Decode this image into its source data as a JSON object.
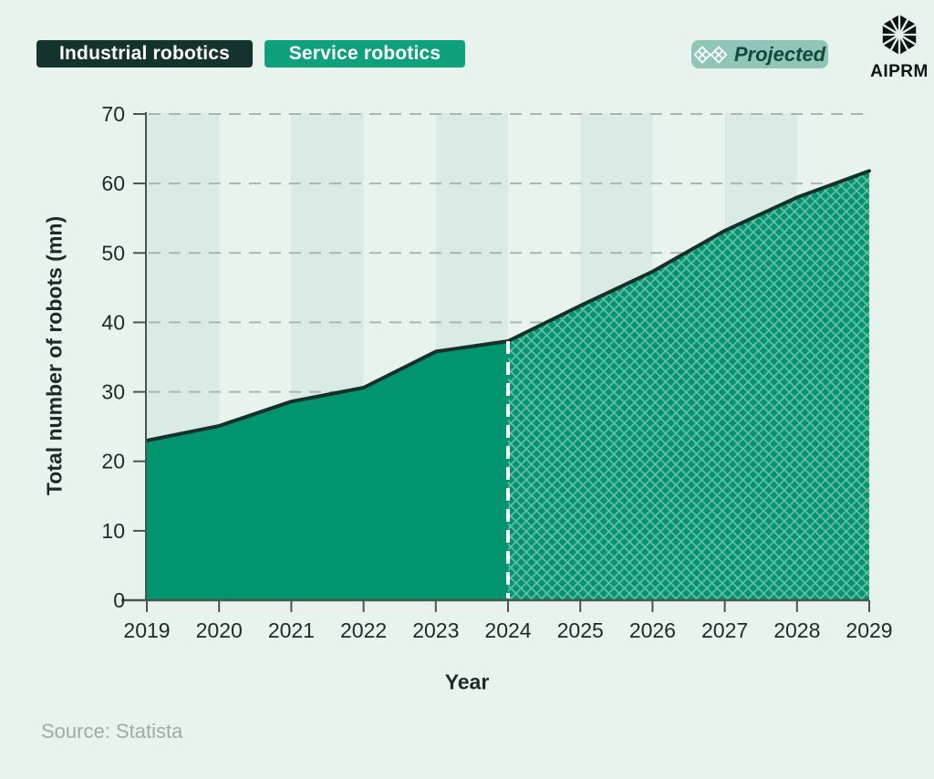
{
  "legend": {
    "industrial": "Industrial robotics",
    "service": "Service robotics",
    "projected": "Projected"
  },
  "brand": {
    "name": "AIPRM"
  },
  "source": "Source: Statista",
  "chart_data": {
    "type": "area",
    "x": [
      2019,
      2020,
      2021,
      2022,
      2023,
      2024,
      2025,
      2026,
      2027,
      2028,
      2029
    ],
    "series": [
      {
        "name": "Total number of robots",
        "values": [
          23,
          25.1,
          28.6,
          30.6,
          35.8,
          37.3,
          42.4,
          47.3,
          53.2,
          58,
          61.8
        ]
      }
    ],
    "projected_from": 2024,
    "title": "",
    "xlabel": "Year",
    "ylabel": "Total number of robots (mn)",
    "ylim": [
      0,
      70
    ],
    "yticks": [
      0,
      10,
      20,
      30,
      40,
      50,
      60,
      70
    ],
    "grid": "horizontal dashed",
    "legend_position": "top-left",
    "shaded_band_year_ranges": [
      [
        2019,
        2020
      ],
      [
        2021,
        2022
      ],
      [
        2023,
        2024
      ],
      [
        2025,
        2026
      ],
      [
        2027,
        2028
      ]
    ],
    "colors": {
      "background": "#E8F3EE",
      "band": "#D9EBE4",
      "grid": "#A9B6B1",
      "axis": "#47564F",
      "tick_text": "#1C2B27",
      "fill": "#00946F",
      "line": "#16302B",
      "hatch": "#7CC5B0",
      "projection_divider": "#FFFFFF",
      "chip_dark": "#14332E",
      "chip_green": "#0FA07C",
      "projected_bg": "#90C6B8",
      "projected_text": "#14473E",
      "source_text": "#9FABA5"
    }
  }
}
